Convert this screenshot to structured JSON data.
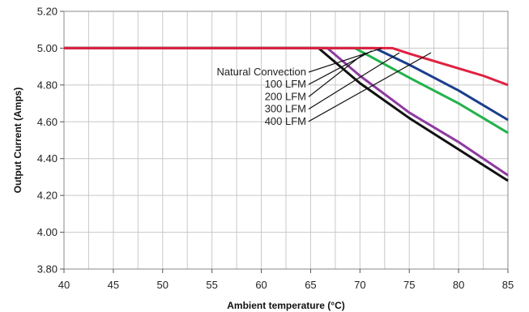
{
  "chart_data": {
    "type": "line",
    "xlabel": "Ambient temperature (°C)",
    "ylabel": "Output Current (Amps)",
    "xlim": [
      40,
      85
    ],
    "ylim": [
      3.8,
      5.2
    ],
    "x_ticks": [
      40,
      45,
      50,
      55,
      60,
      65,
      70,
      75,
      80,
      85
    ],
    "y_ticks": [
      3.8,
      4.0,
      4.2,
      4.4,
      4.6,
      4.8,
      5.0,
      5.2
    ],
    "x_tick_labels": [
      "40",
      "45",
      "50",
      "55",
      "60",
      "65",
      "70",
      "75",
      "80",
      "85"
    ],
    "y_tick_labels": [
      "3.80",
      "4.00",
      "4.20",
      "4.40",
      "4.60",
      "4.80",
      "5.00",
      "5.20"
    ],
    "grid": true,
    "series": [
      {
        "name": "Natural Convection",
        "color": "#e02040",
        "points": [
          [
            40,
            5.0
          ],
          [
            73.3,
            5.0
          ],
          [
            75,
            4.97
          ],
          [
            77.5,
            4.93
          ],
          [
            80,
            4.89
          ],
          [
            82.5,
            4.85
          ],
          [
            85,
            4.8
          ]
        ]
      },
      {
        "name": "100 LFM",
        "color": "#1a3e8c",
        "points": [
          [
            40,
            5.0
          ],
          [
            71.5,
            5.0
          ],
          [
            75,
            4.91
          ],
          [
            80,
            4.77
          ],
          [
            85,
            4.61
          ]
        ]
      },
      {
        "name": "200 LFM",
        "color": "#22b24c",
        "points": [
          [
            40,
            5.0
          ],
          [
            69.5,
            5.0
          ],
          [
            75,
            4.84
          ],
          [
            80,
            4.7
          ],
          [
            85,
            4.54
          ]
        ]
      },
      {
        "name": "300 LFM",
        "color": "#8e3aa0",
        "points": [
          [
            40,
            5.0
          ],
          [
            66.7,
            5.0
          ],
          [
            70,
            4.85
          ],
          [
            75,
            4.65
          ],
          [
            80,
            4.49
          ],
          [
            85,
            4.31
          ]
        ]
      },
      {
        "name": "400 LFM",
        "color": "#111111",
        "points": [
          [
            40,
            5.0
          ],
          [
            65.8,
            5.0
          ],
          [
            70,
            4.81
          ],
          [
            75,
            4.62
          ],
          [
            80,
            4.45
          ],
          [
            85,
            4.28
          ]
        ]
      }
    ],
    "annotations": [
      {
        "label": "Natural Convection",
        "pointer_to": [
          72.2,
          5.0
        ]
      },
      {
        "label": "100 LFM",
        "pointer_to": [
          71.2,
          4.985
        ]
      },
      {
        "label": "200 LFM",
        "pointer_to": [
          70.5,
          4.975
        ]
      },
      {
        "label": "300 LFM",
        "pointer_to": [
          74,
          4.975
        ]
      },
      {
        "label": "400 LFM",
        "pointer_to": [
          77.2,
          4.975
        ]
      }
    ]
  }
}
